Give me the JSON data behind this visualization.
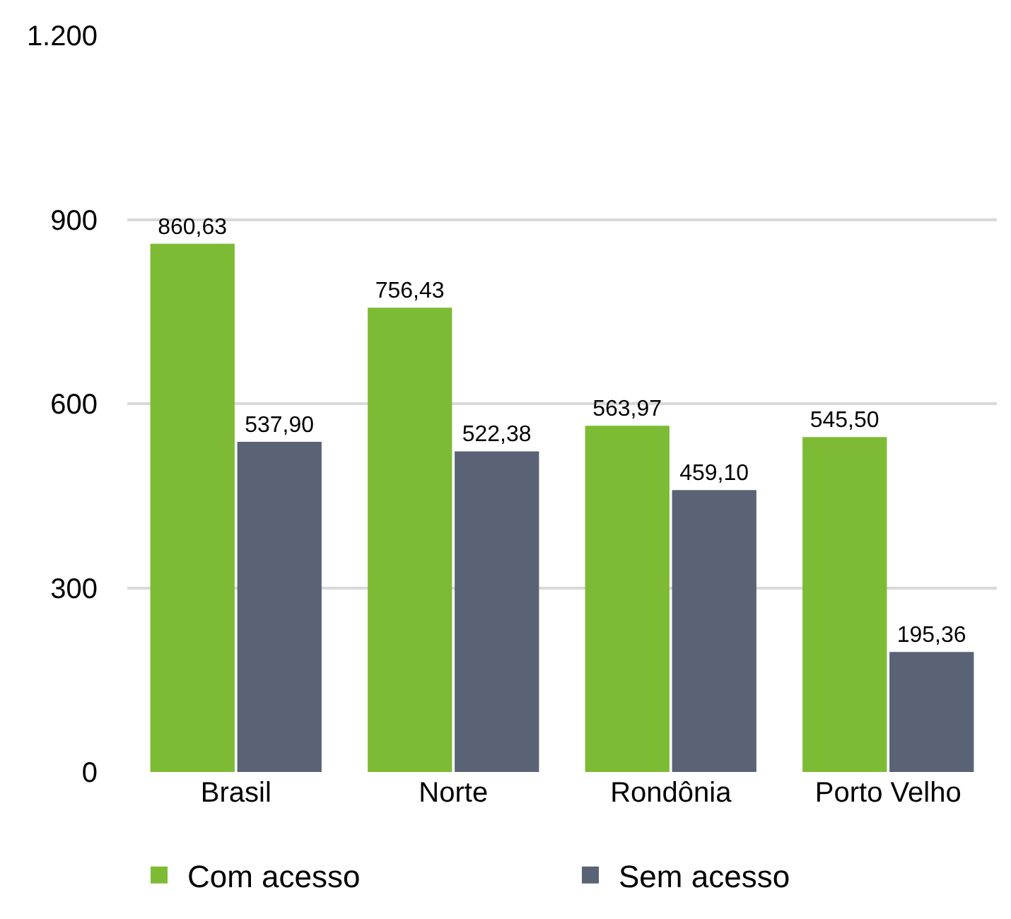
{
  "chart_data": {
    "type": "bar",
    "categories": [
      "Brasil",
      "Norte",
      "Rondônia",
      "Porto Velho"
    ],
    "series": [
      {
        "name": "Com acesso",
        "color": "#7dbb35",
        "values": [
          860.63,
          756.43,
          563.97,
          545.5
        ],
        "value_labels": [
          "860,63",
          "756,43",
          "563,97",
          "545,50"
        ]
      },
      {
        "name": "Sem acesso",
        "color": "#5a6275",
        "values": [
          537.9,
          522.38,
          459.1,
          195.36
        ],
        "value_labels": [
          "537,90",
          "522,38",
          "459,10",
          "195,36"
        ]
      }
    ],
    "ylim": [
      0,
      1200
    ],
    "yticks": [
      0,
      300,
      600,
      900,
      {
        "value": 1200,
        "label": "1.200"
      }
    ],
    "grid": "y",
    "legend": "bottom"
  }
}
